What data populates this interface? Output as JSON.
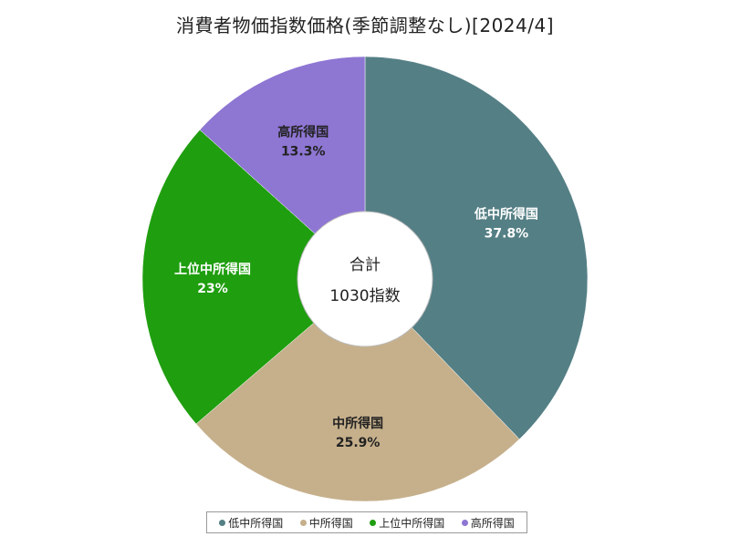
{
  "title": "消費者物価指数価格(季節調整なし)[2024/4]",
  "chart_data": {
    "type": "pie",
    "donut": true,
    "center_label": {
      "line1": "合計",
      "line2": "1030指数"
    },
    "slices": [
      {
        "label": "低中所得国",
        "value": 37.8,
        "display": "37.8%",
        "color": "#547f85"
      },
      {
        "label": "中所得国",
        "value": 25.9,
        "display": "25.9%",
        "color": "#c6b08c"
      },
      {
        "label": "上位中所得国",
        "value": 23.0,
        "display": "23%",
        "color": "#1f9e0f"
      },
      {
        "label": "高所得国",
        "value": 13.3,
        "display": "13.3%",
        "color": "#8e76d3"
      }
    ],
    "legend_position": "bottom"
  }
}
